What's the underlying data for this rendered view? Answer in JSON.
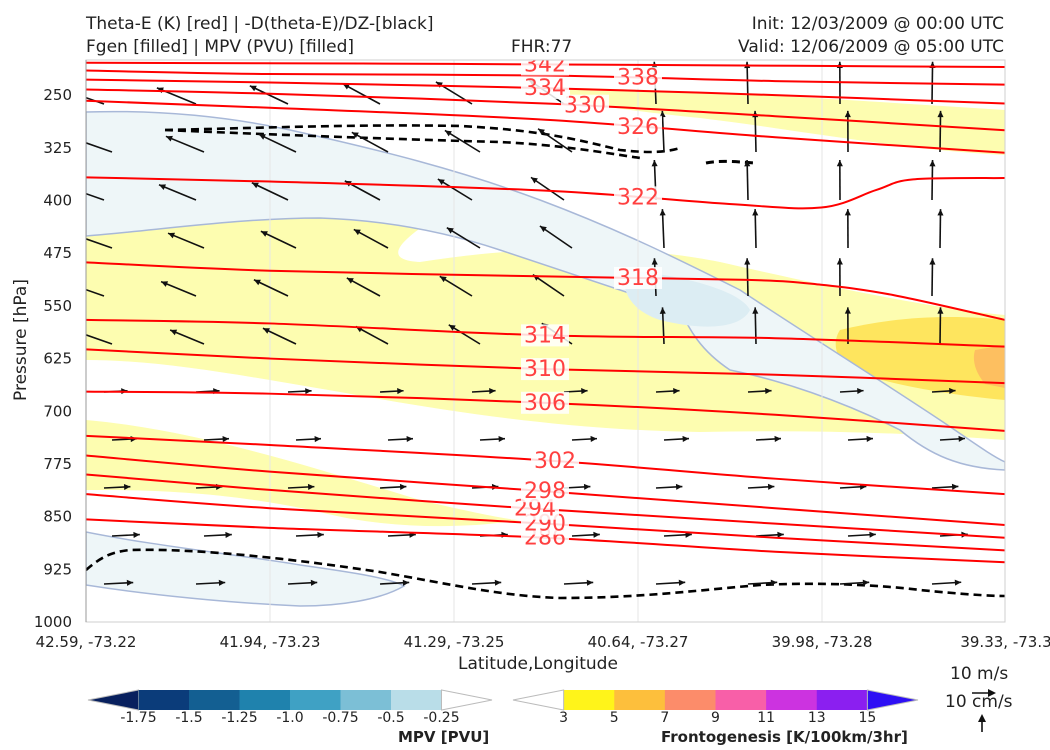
{
  "header": {
    "title_line1": "Theta-E (K) [red] | -D(theta-E)/DZ-[black]",
    "title_line2": "Fgen [filled] | MPV (PVU) [filled]",
    "fhr": "FHR:77",
    "init": "Init: 12/03/2009 @ 00:00 UTC",
    "valid": "Valid: 12/06/2009 @ 05:00 UTC"
  },
  "chart_data": {
    "type": "cross-section",
    "xlabel": "Latitude,Longitude",
    "ylabel": "Pressure [hPa]",
    "x_ticks": [
      "42.59, -73.22",
      "41.94, -73.23",
      "41.29, -73.25",
      "40.64, -73.27",
      "39.98, -73.28",
      "39.33, -73.3"
    ],
    "y_ticks": [
      250,
      325,
      400,
      475,
      550,
      625,
      700,
      775,
      850,
      925,
      1000
    ],
    "ylim": [
      1000,
      200
    ],
    "grid": true,
    "theta_e_contours": [
      {
        "value": 286,
        "color": "#ff0000",
        "points": [
          [
            0,
            854
          ],
          [
            0.2,
            866
          ],
          [
            0.5,
            880
          ],
          [
            0.75,
            900
          ],
          [
            1,
            915
          ]
        ]
      },
      {
        "value": 290,
        "color": "#ff0000",
        "points": [
          [
            0,
            818
          ],
          [
            0.2,
            838
          ],
          [
            0.5,
            860
          ],
          [
            0.75,
            880
          ],
          [
            1,
            898
          ]
        ]
      },
      {
        "value": 294,
        "color": "#ff0000",
        "points": [
          [
            0,
            790
          ],
          [
            0.2,
            812
          ],
          [
            0.48,
            838
          ],
          [
            0.75,
            860
          ],
          [
            1,
            880
          ]
        ]
      },
      {
        "value": 298,
        "color": "#ff0000",
        "points": [
          [
            0,
            763
          ],
          [
            0.2,
            786
          ],
          [
            0.48,
            812
          ],
          [
            0.75,
            838
          ],
          [
            1,
            862
          ]
        ]
      },
      {
        "value": 302,
        "color": "#ff0000",
        "points": [
          [
            0,
            735
          ],
          [
            0.2,
            748
          ],
          [
            0.5,
            770
          ],
          [
            0.75,
            796
          ],
          [
            1,
            818
          ]
        ]
      },
      {
        "value": 306,
        "color": "#ff0000",
        "points": [
          [
            0,
            672
          ],
          [
            0.2,
            675
          ],
          [
            0.5,
            688
          ],
          [
            0.75,
            705
          ],
          [
            1,
            728
          ]
        ]
      },
      {
        "value": 310,
        "color": "#ff0000",
        "points": [
          [
            0,
            612
          ],
          [
            0.2,
            625
          ],
          [
            0.5,
            640
          ],
          [
            0.75,
            648
          ],
          [
            1,
            660
          ]
        ]
      },
      {
        "value": 314,
        "color": "#ff0000",
        "points": [
          [
            0,
            570
          ],
          [
            0.2,
            575
          ],
          [
            0.5,
            592
          ],
          [
            0.75,
            596
          ],
          [
            1,
            608
          ]
        ]
      },
      {
        "value": 318,
        "color": "#ff0000",
        "points": [
          [
            0,
            488
          ],
          [
            0.2,
            500
          ],
          [
            0.5,
            508
          ],
          [
            0.72,
            513
          ],
          [
            0.8,
            520
          ],
          [
            0.88,
            535
          ],
          [
            1,
            570
          ]
        ]
      },
      {
        "value": 322,
        "color": "#ff0000",
        "points": [
          [
            0,
            367
          ],
          [
            0.2,
            373
          ],
          [
            0.5,
            386
          ],
          [
            0.7,
            405
          ],
          [
            0.8,
            410
          ],
          [
            0.86,
            385
          ],
          [
            0.9,
            370
          ],
          [
            1,
            368
          ]
        ]
      },
      {
        "value": 326,
        "color": "#ff0000",
        "points": [
          [
            0,
            258
          ],
          [
            0.2,
            268
          ],
          [
            0.5,
            285
          ],
          [
            0.75,
            310
          ],
          [
            1,
            332
          ]
        ]
      },
      {
        "value": 330,
        "color": "#ff0000",
        "points": [
          [
            0,
            242
          ],
          [
            0.2,
            248
          ],
          [
            0.5,
            262
          ],
          [
            0.75,
            280
          ],
          [
            1,
            300
          ]
        ]
      },
      {
        "value": 334,
        "color": "#ff0000",
        "points": [
          [
            0,
            228
          ],
          [
            0.2,
            232
          ],
          [
            0.5,
            240
          ],
          [
            0.75,
            250
          ],
          [
            1,
            262
          ]
        ]
      },
      {
        "value": 338,
        "color": "#ff0000",
        "points": [
          [
            0,
            215
          ],
          [
            0.2,
            220
          ],
          [
            0.5,
            222
          ],
          [
            0.75,
            230
          ],
          [
            1,
            235
          ]
        ]
      },
      {
        "value": 342,
        "color": "#ff0000",
        "points": [
          [
            0,
            204
          ],
          [
            0.3,
            205
          ],
          [
            0.6,
            207
          ],
          [
            1,
            210
          ]
        ]
      }
    ],
    "mpv_colorbar": {
      "label": "MPV [PVU]",
      "ticks": [
        "-1.75",
        "-1.5",
        "-1.25",
        "-1.0",
        "-0.75",
        "-0.5",
        "-0.25"
      ],
      "colors": [
        "#08205e",
        "#0b3c7a",
        "#135f92",
        "#1f82ad",
        "#3fa1c4",
        "#7cbfd6",
        "#b9dde8",
        "#ffffff"
      ]
    },
    "fgen_colorbar": {
      "label": "Frontogenesis [K/100km/3hr]",
      "ticks": [
        "3",
        "5",
        "7",
        "9",
        "11",
        "13",
        "15"
      ],
      "colors": [
        "#ffffff",
        "#fff41a",
        "#fdbf3c",
        "#fc8c6a",
        "#f85fa8",
        "#cc33e0",
        "#8b1ff0",
        "#2e10f4"
      ]
    },
    "vector_key": {
      "horizontal": "10 m/s",
      "vertical": "10 cm/s"
    }
  }
}
